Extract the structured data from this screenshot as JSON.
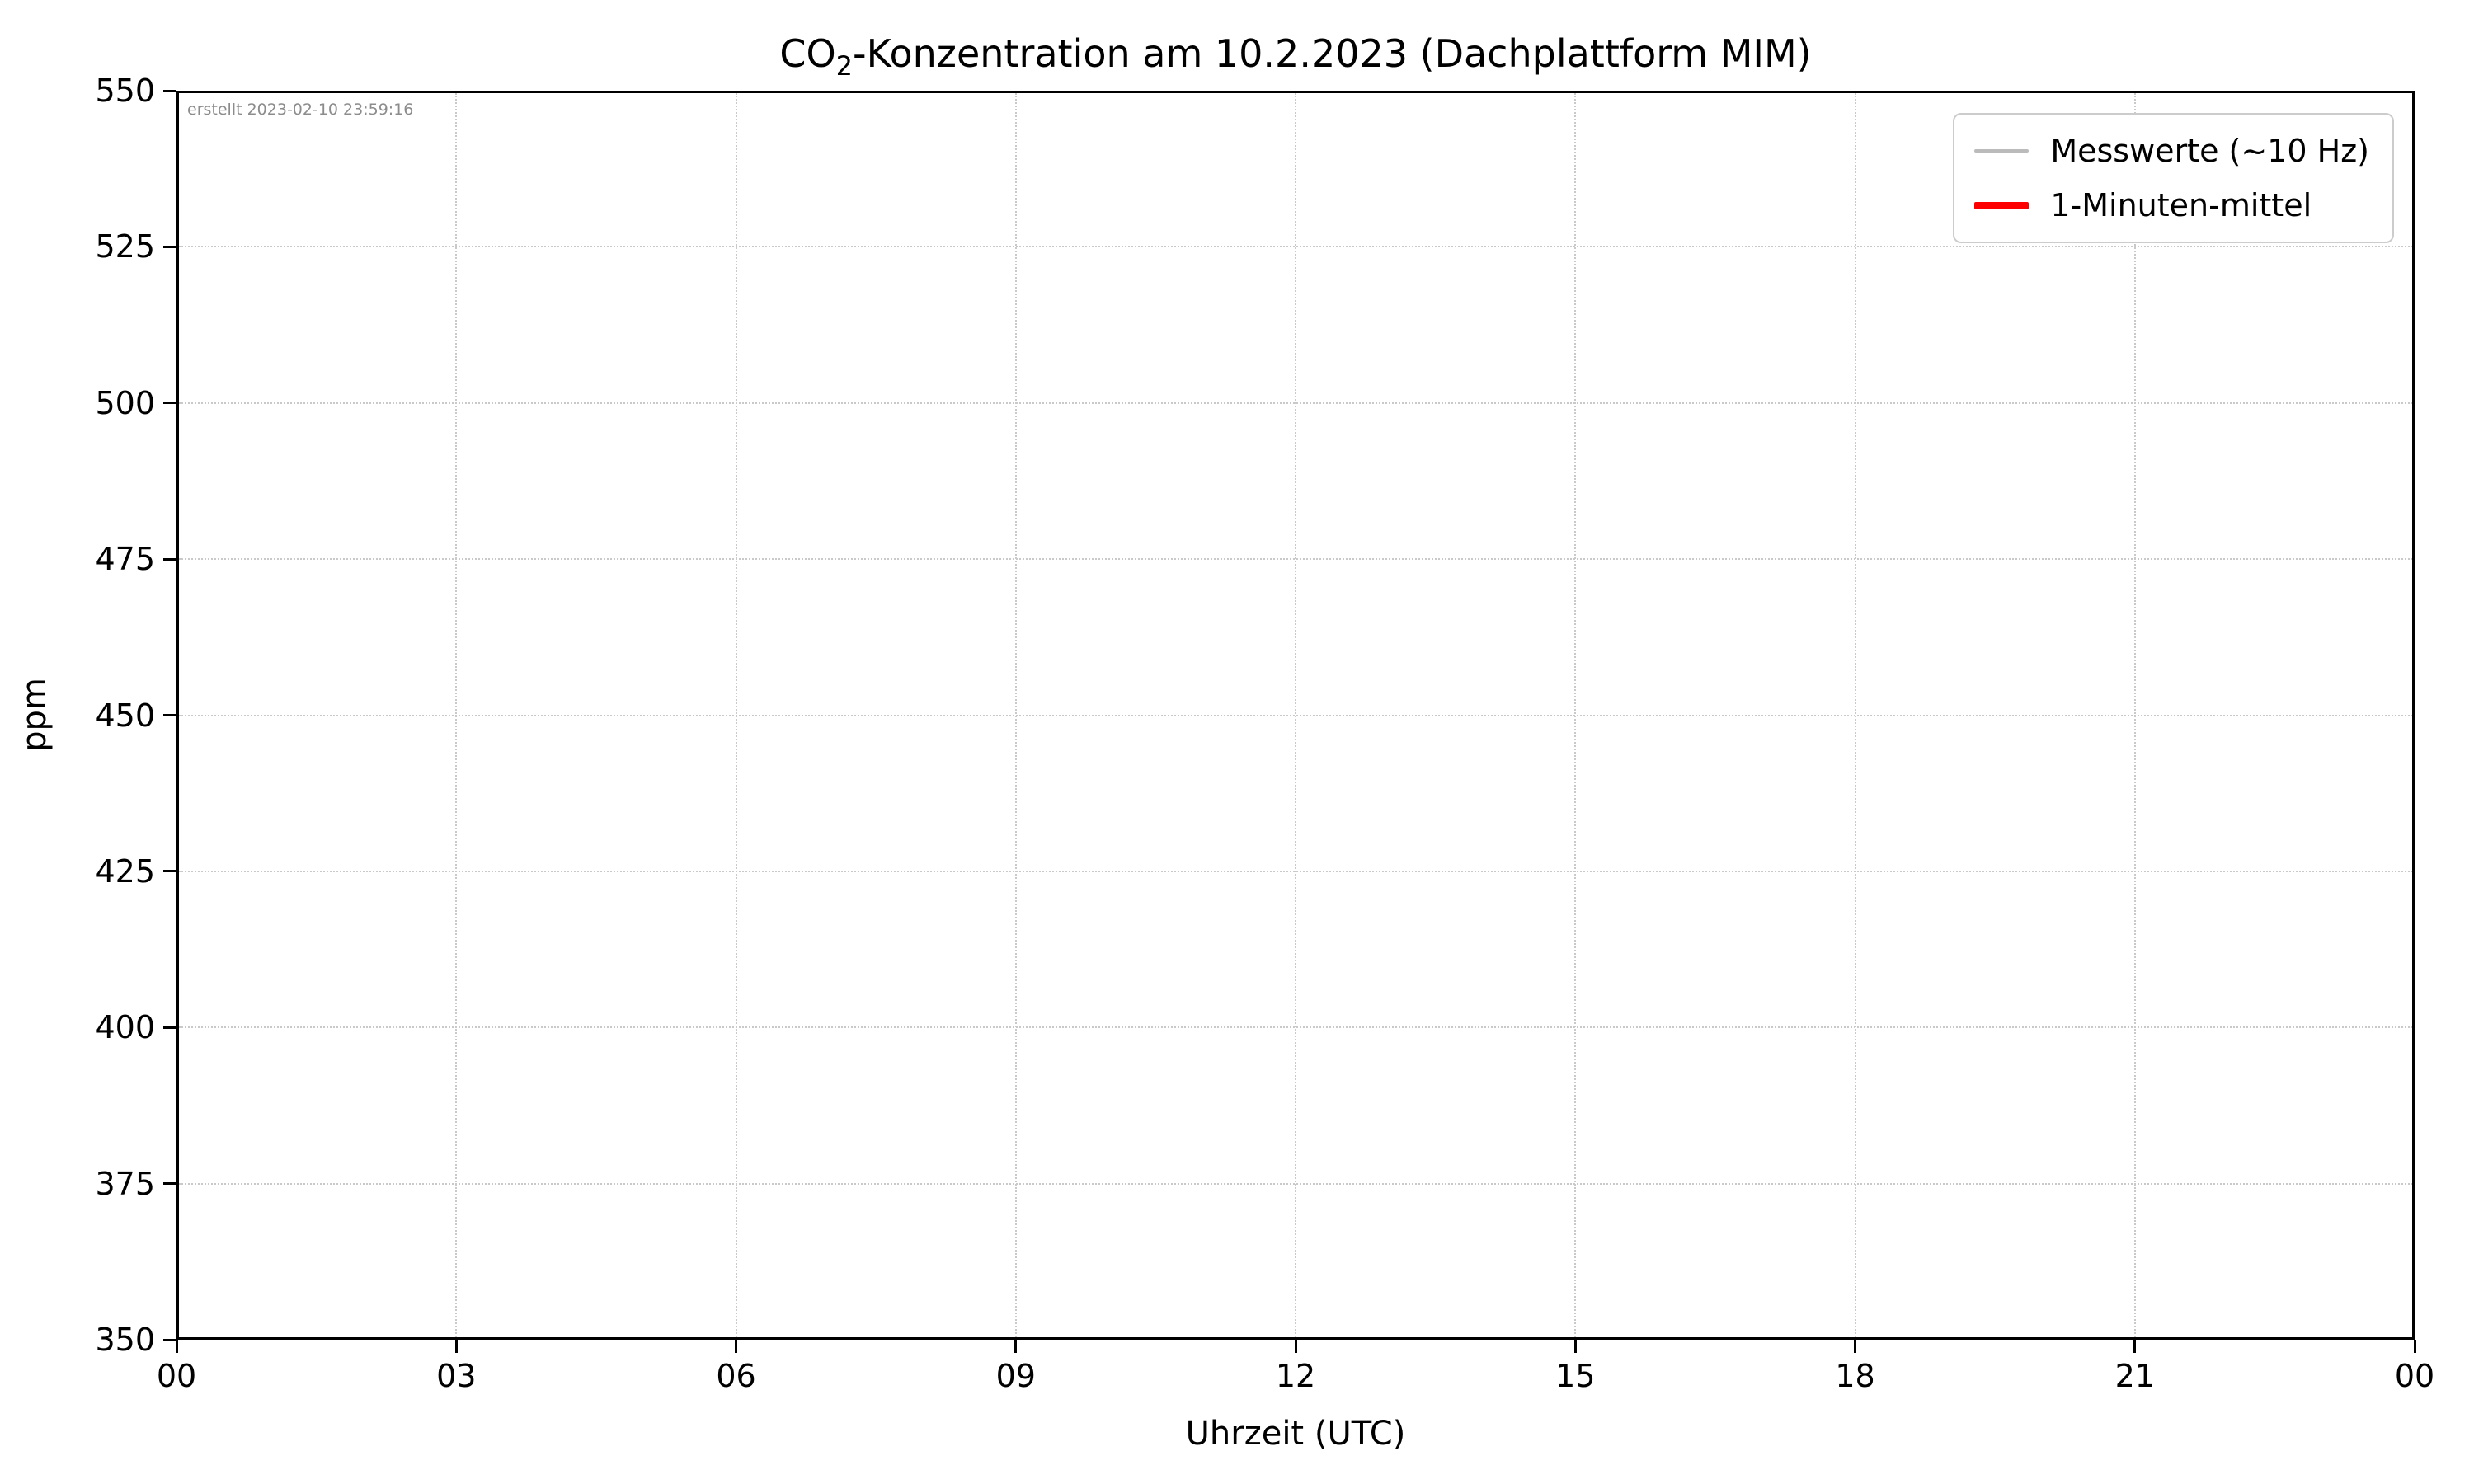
{
  "chart_data": {
    "type": "line",
    "title": {
      "prefix": "CO",
      "subscript": "2",
      "suffix": "-Konzentration am 10.2.2023 (Dachplattform MIM)"
    },
    "annotation": "erstellt 2023-02-10 23:59:16",
    "xlabel": "Uhrzeit (UTC)",
    "ylabel": "ppm",
    "x_ticks": [
      "00",
      "03",
      "06",
      "09",
      "12",
      "15",
      "18",
      "21",
      "00"
    ],
    "x_tick_interval_hours": 3,
    "xlim_hours": [
      0,
      24
    ],
    "y_ticks": [
      "350",
      "375",
      "400",
      "425",
      "450",
      "475",
      "500",
      "525",
      "550"
    ],
    "ylim": [
      350,
      550
    ],
    "grid": true,
    "grid_style": "dotted",
    "legend_position": "upper right",
    "legend": [
      {
        "label": "Messwerte (~10 Hz)",
        "color": "#bbbbbb",
        "line_thickness": 4
      },
      {
        "label": "1-Minuten-mittel",
        "color": "#ff0000",
        "line_thickness": 9
      }
    ],
    "series": [
      {
        "name": "Messwerte (~10 Hz)",
        "color": "#bbbbbb",
        "points": []
      },
      {
        "name": "1-Minuten-mittel",
        "color": "#ff0000",
        "points": []
      }
    ]
  },
  "colors": {
    "background": "#ffffff",
    "spine": "#000000",
    "grid": "#c9c9c9",
    "annotation_text": "#8c8c8c",
    "legend_border": "#cccccc",
    "text": "#000000"
  }
}
